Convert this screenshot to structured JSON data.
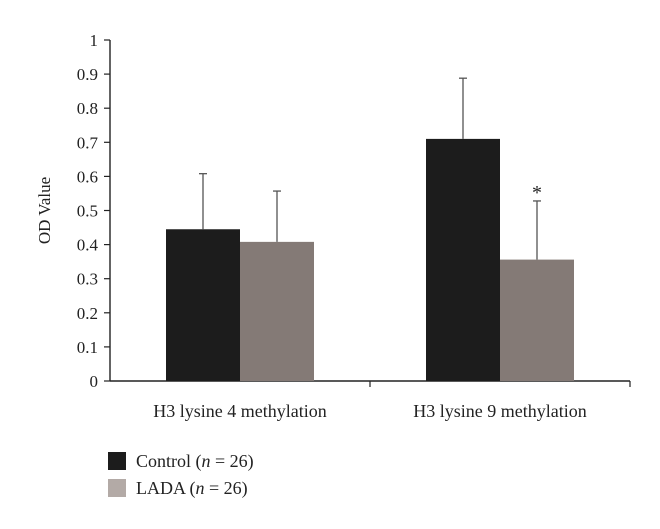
{
  "chart_data": {
    "type": "bar",
    "ylabel": "OD Value",
    "xlabel": "",
    "ylim": [
      0,
      1
    ],
    "yticks": [
      "0",
      "0.1",
      "0.2",
      "0.3",
      "0.4",
      "0.5",
      "0.6",
      "0.7",
      "0.8",
      "0.9",
      "1"
    ],
    "categories": [
      "H3 lysine 4 methylation",
      "H3 lysine 9 methylation"
    ],
    "series": [
      {
        "name": "Control (n = 26)",
        "values": [
          0.445,
          0.71
        ],
        "errors": [
          0.163,
          0.178
        ],
        "color": "#1c1c1c"
      },
      {
        "name": "LADA (n = 26)",
        "values": [
          0.408,
          0.356
        ],
        "errors": [
          0.149,
          0.172
        ],
        "color": "#847a76"
      }
    ],
    "annotations": [
      {
        "text": "*",
        "category": "H3 lysine 9 methylation",
        "series": "LADA (n = 26)"
      }
    ],
    "legend_position": "bottom-left",
    "grid": false
  },
  "legend": {
    "items": [
      {
        "prefix": "Control (",
        "italic": "n",
        "suffix": " = 26)",
        "color": "#1c1c1c"
      },
      {
        "prefix": "LADA (",
        "italic": "n",
        "suffix": " = 26)",
        "color": "#b3aaa6"
      }
    ]
  }
}
